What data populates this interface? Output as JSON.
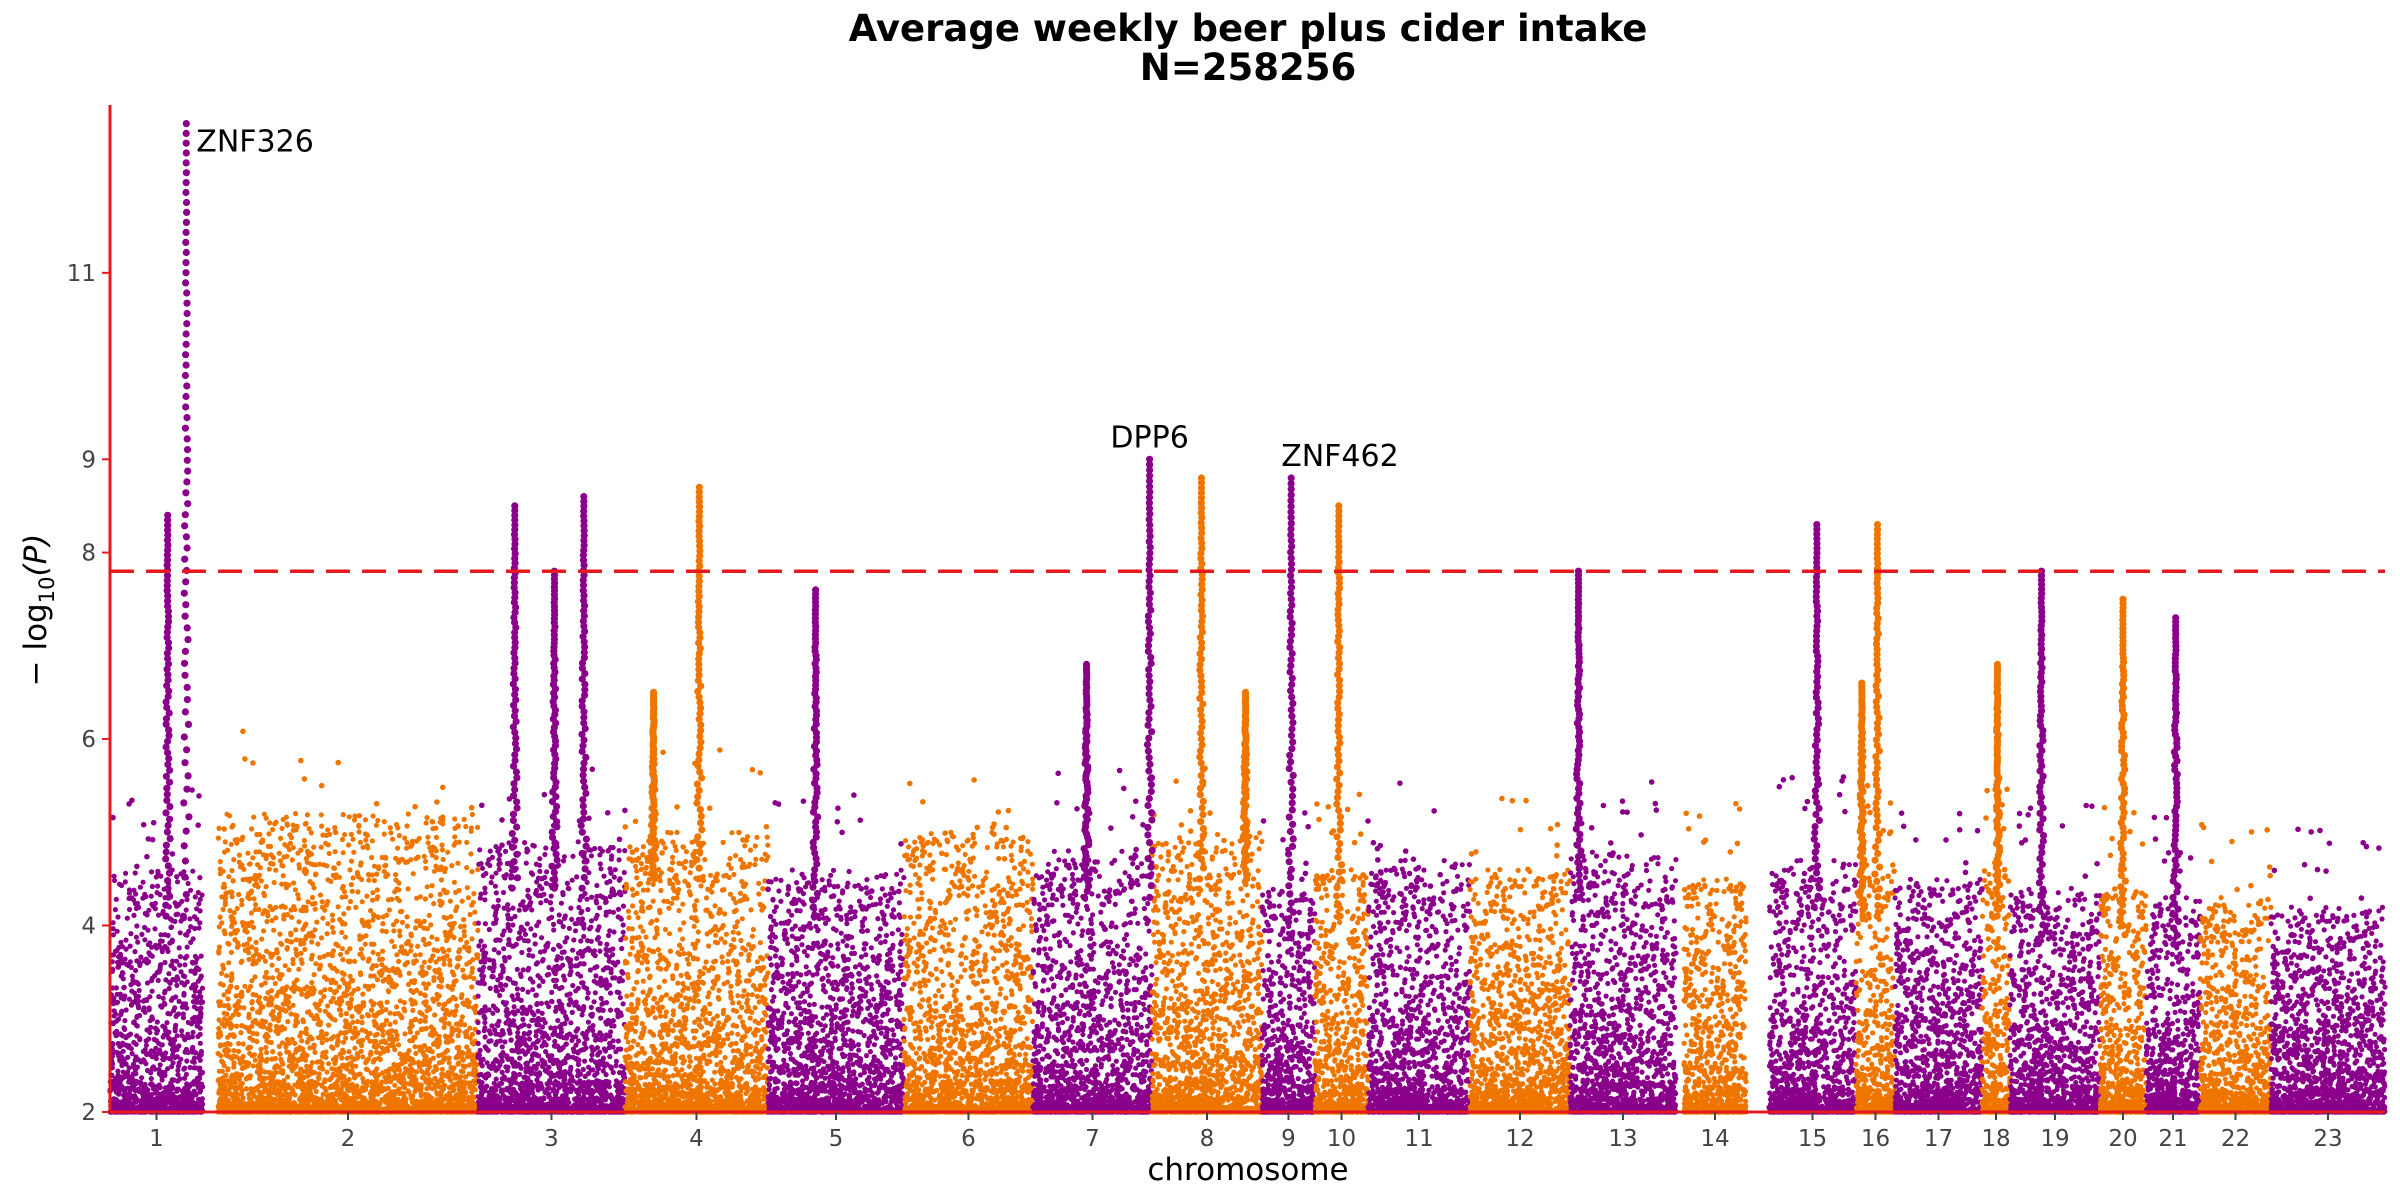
{
  "chart_data": {
    "type": "scatter",
    "subtype": "manhattan",
    "title": "Average weekly beer plus cider intake",
    "subtitle": "N=258256",
    "xlabel": "chromosome",
    "ylabel_parts": {
      "prefix": "− log",
      "sub": "10",
      "suffix": "(P)"
    },
    "ylim": [
      2,
      12.8
    ],
    "yticks": [
      2,
      4,
      6,
      8,
      9,
      11
    ],
    "threshold": 7.8,
    "colors": {
      "odd": "#8B008B",
      "even": "#EE7600",
      "threshold": "#E41A1C",
      "axis": "#E41A1C"
    },
    "chromosomes": [
      {
        "label": "1",
        "peak": 4.6
      },
      {
        "label": "2",
        "peak": 5.2
      },
      {
        "label": "3",
        "peak": 4.9
      },
      {
        "label": "4",
        "peak": 5.0
      },
      {
        "label": "5",
        "peak": 4.6
      },
      {
        "label": "6",
        "peak": 5.0
      },
      {
        "label": "7",
        "peak": 4.8
      },
      {
        "label": "8",
        "peak": 5.0
      },
      {
        "label": "9",
        "peak": 4.4
      },
      {
        "label": "10",
        "peak": 4.6
      },
      {
        "label": "11",
        "peak": 4.7
      },
      {
        "label": "12",
        "peak": 4.6
      },
      {
        "label": "13",
        "peak": 4.8
      },
      {
        "label": "14",
        "peak": 4.5
      },
      {
        "label": "15",
        "peak": 4.7
      },
      {
        "label": "16",
        "peak": 4.6
      },
      {
        "label": "17",
        "peak": 4.5
      },
      {
        "label": "18",
        "peak": 4.6
      },
      {
        "label": "19",
        "peak": 4.4
      },
      {
        "label": "20",
        "peak": 4.4
      },
      {
        "label": "21",
        "peak": 4.3
      },
      {
        "label": "22",
        "peak": 4.3
      },
      {
        "label": "23",
        "peak": 4.2
      }
    ],
    "hits": [
      {
        "chr": "1",
        "pos": 0.82,
        "top": 12.6,
        "gene": "ZNF326"
      },
      {
        "chr": "1",
        "pos": 0.62,
        "top": 8.4
      },
      {
        "chr": "3",
        "pos": 0.25,
        "top": 8.5
      },
      {
        "chr": "3",
        "pos": 0.72,
        "top": 8.6
      },
      {
        "chr": "3",
        "pos": 0.52,
        "top": 7.8
      },
      {
        "chr": "4",
        "pos": 0.52,
        "top": 8.7
      },
      {
        "chr": "4",
        "pos": 0.2,
        "top": 6.5
      },
      {
        "chr": "5",
        "pos": 0.35,
        "top": 7.6
      },
      {
        "chr": "7",
        "pos": 0.98,
        "top": 9.0,
        "gene": "DPP6"
      },
      {
        "chr": "7",
        "pos": 0.45,
        "top": 6.8
      },
      {
        "chr": "8",
        "pos": 0.45,
        "top": 8.8
      },
      {
        "chr": "8",
        "pos": 0.85,
        "top": 6.5
      },
      {
        "chr": "9",
        "pos": 0.55,
        "top": 8.8,
        "gene": "ZNF462"
      },
      {
        "chr": "10",
        "pos": 0.45,
        "top": 8.5
      },
      {
        "chr": "13",
        "pos": 0.08,
        "top": 7.8
      },
      {
        "chr": "15",
        "pos": 0.55,
        "top": 8.3
      },
      {
        "chr": "16",
        "pos": 0.55,
        "top": 8.3
      },
      {
        "chr": "16",
        "pos": 0.15,
        "top": 6.6
      },
      {
        "chr": "18",
        "pos": 0.55,
        "top": 6.8
      },
      {
        "chr": "19",
        "pos": 0.35,
        "top": 7.8
      },
      {
        "chr": "20",
        "pos": 0.5,
        "top": 7.5
      },
      {
        "chr": "21",
        "pos": 0.55,
        "top": 7.3
      }
    ]
  }
}
